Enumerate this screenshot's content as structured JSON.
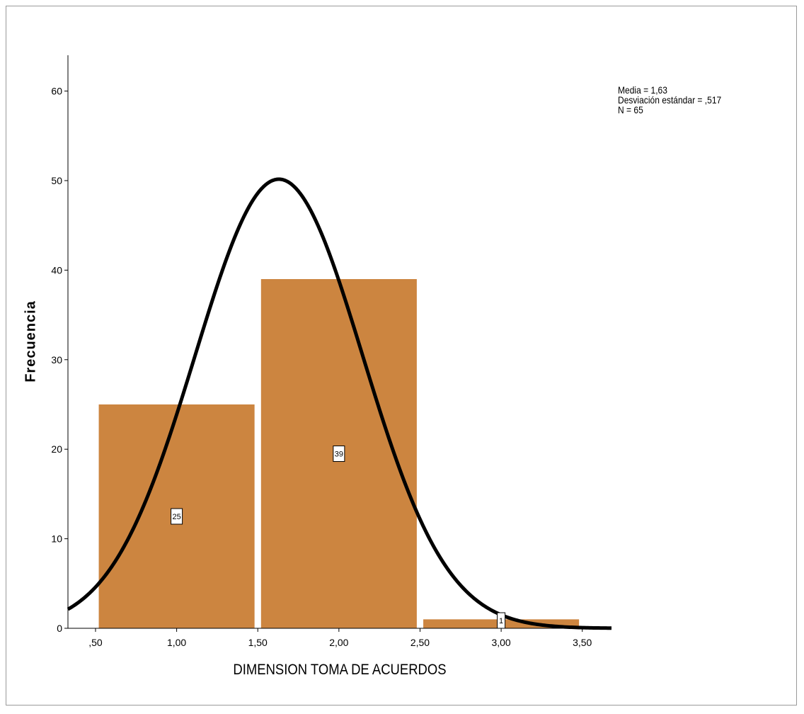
{
  "chart_data": {
    "type": "bar",
    "chart_kind": "histogram",
    "xlabel": "DIMENSION TOMA DE ACUERDOS",
    "ylabel": "Frecuencia",
    "x_tick_labels": [
      ",50",
      "1,00",
      "1,50",
      "2,00",
      "2,50",
      "3,00",
      "3,50"
    ],
    "x_ticks": [
      0.5,
      1.0,
      1.5,
      2.0,
      2.5,
      3.0,
      3.5
    ],
    "y_tick_labels": [
      "0",
      "10",
      "20",
      "30",
      "40",
      "50",
      "60"
    ],
    "y_ticks": [
      0,
      10,
      20,
      30,
      40,
      50,
      60
    ],
    "xlim": [
      0.33,
      3.68
    ],
    "ylim": [
      0,
      64
    ],
    "bins": [
      {
        "start": 0.52,
        "end": 1.48,
        "value": 25,
        "label": "25"
      },
      {
        "start": 1.52,
        "end": 2.48,
        "value": 39,
        "label": "39"
      },
      {
        "start": 2.52,
        "end": 3.48,
        "value": 1,
        "label": "1"
      }
    ],
    "bar_color": "#CC8540",
    "curve_color": "#000000",
    "normal_curve": {
      "mean": 1.63,
      "sd": 0.517,
      "n": 65,
      "bin_width": 1.0
    },
    "stats": {
      "mean_text": "Media = 1,63",
      "sd_text": "Desviación estándar = ,517",
      "n_text": "N = 65"
    },
    "grid": false
  }
}
